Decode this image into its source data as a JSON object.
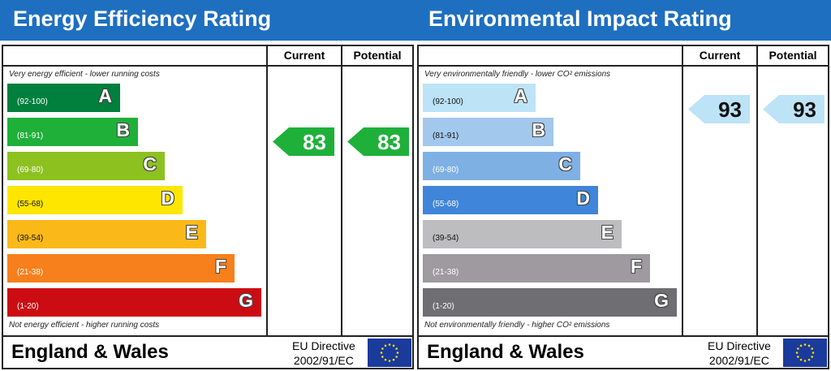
{
  "panels": [
    {
      "title": "Energy Efficiency Rating",
      "col_current": "Current",
      "col_potential": "Potential",
      "top_note": "Very energy efficient - lower running costs",
      "bottom_note": "Not energy efficient - higher running costs",
      "bands": [
        {
          "range": "(92-100)",
          "letter": "A",
          "color": "#007f3d"
        },
        {
          "range": "(81-91)",
          "letter": "B",
          "color": "#1fb03a"
        },
        {
          "range": "(69-80)",
          "letter": "C",
          "color": "#8dc11f"
        },
        {
          "range": "(55-68)",
          "letter": "D",
          "color": "#ffe600"
        },
        {
          "range": "(39-54)",
          "letter": "E",
          "color": "#fbb919"
        },
        {
          "range": "(21-38)",
          "letter": "F",
          "color": "#f7801c"
        },
        {
          "range": "(1-20)",
          "letter": "G",
          "color": "#cc0c13"
        }
      ],
      "current": "83",
      "potential": "83",
      "current_band": "B",
      "potential_band": "B",
      "arrow_color": "#1fb03a",
      "arrow_text": "#ffffff",
      "region": "England & Wales",
      "directive_line1": "EU Directive",
      "directive_line2": "2002/91/EC"
    },
    {
      "title": "Environmental Impact Rating",
      "col_current": "Current",
      "col_potential": "Potential",
      "top_note": "Very environmentally friendly - lower CO² emissions",
      "bottom_note": "Not environmentally friendly - higher CO² emissions",
      "bands": [
        {
          "range": "(92-100)",
          "letter": "A",
          "color": "#bde3f7"
        },
        {
          "range": "(81-91)",
          "letter": "B",
          "color": "#a3c8ed"
        },
        {
          "range": "(69-80)",
          "letter": "C",
          "color": "#7fb0e4"
        },
        {
          "range": "(55-68)",
          "letter": "D",
          "color": "#3f85d9"
        },
        {
          "range": "(39-54)",
          "letter": "E",
          "color": "#bdbcbf"
        },
        {
          "range": "(21-38)",
          "letter": "F",
          "color": "#9e9aa0"
        },
        {
          "range": "(1-20)",
          "letter": "G",
          "color": "#6f6e72"
        }
      ],
      "current": "93",
      "potential": "93",
      "current_band": "A",
      "potential_band": "A",
      "arrow_color": "#bde3f7",
      "arrow_text": "#111111",
      "region": "England & Wales",
      "directive_line1": "EU Directive",
      "directive_line2": "2002/91/EC"
    }
  ]
}
